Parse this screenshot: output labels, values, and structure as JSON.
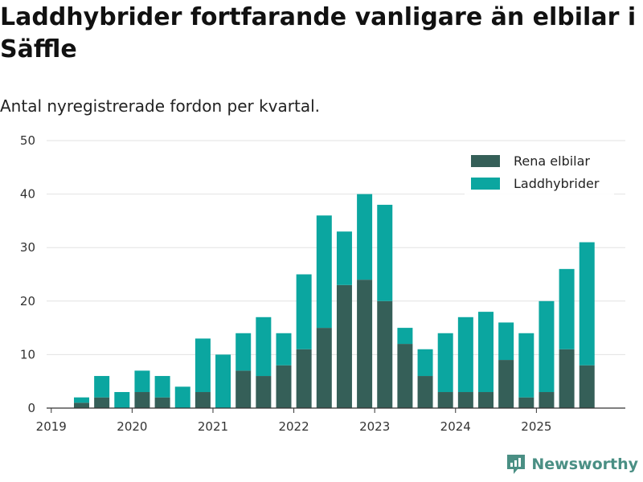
{
  "header": {
    "title": "Laddhybrider fortfarande vanligare än elbilar i Säffle",
    "subtitle": "Antal nyregistrerade fordon per kvartal."
  },
  "brand": {
    "name": "Newsworthy",
    "color": "#4a8f84"
  },
  "chart_data": {
    "type": "bar",
    "stacked": true,
    "title": "Laddhybrider fortfarande vanligare än elbilar i Säffle",
    "subtitle": "Antal nyregistrerade fordon per kvartal.",
    "xlabel": "",
    "ylabel": "",
    "ylim": [
      0,
      50
    ],
    "yticks": [
      0,
      10,
      20,
      30,
      40,
      50
    ],
    "xtick_labels": [
      "2019",
      "2020",
      "2021",
      "2022",
      "2023",
      "2024",
      "2025"
    ],
    "categories": [
      "2019Q2",
      "2019Q3",
      "2019Q4",
      "2020Q1",
      "2020Q2",
      "2020Q3",
      "2020Q4",
      "2021Q1",
      "2021Q2",
      "2021Q3",
      "2021Q4",
      "2022Q1",
      "2022Q2",
      "2022Q3",
      "2022Q4",
      "2023Q1",
      "2023Q2",
      "2023Q3",
      "2023Q4",
      "2024Q1",
      "2024Q2",
      "2024Q3",
      "2024Q4",
      "2025Q1",
      "2025Q2",
      "2025Q3"
    ],
    "series": [
      {
        "name": "Rena elbilar",
        "color": "#355f58",
        "values": [
          1,
          2,
          0,
          3,
          2,
          0,
          3,
          0,
          7,
          6,
          8,
          11,
          15,
          23,
          24,
          20,
          12,
          6,
          3,
          3,
          3,
          9,
          2,
          3,
          11,
          8
        ]
      },
      {
        "name": "Laddhybrider",
        "color": "#0ba6a0",
        "values": [
          1,
          4,
          3,
          4,
          4,
          4,
          10,
          10,
          7,
          11,
          6,
          14,
          21,
          10,
          16,
          18,
          3,
          5,
          11,
          14,
          15,
          7,
          12,
          17,
          15,
          23
        ]
      }
    ],
    "legend_position": "top-right",
    "grid": true
  }
}
